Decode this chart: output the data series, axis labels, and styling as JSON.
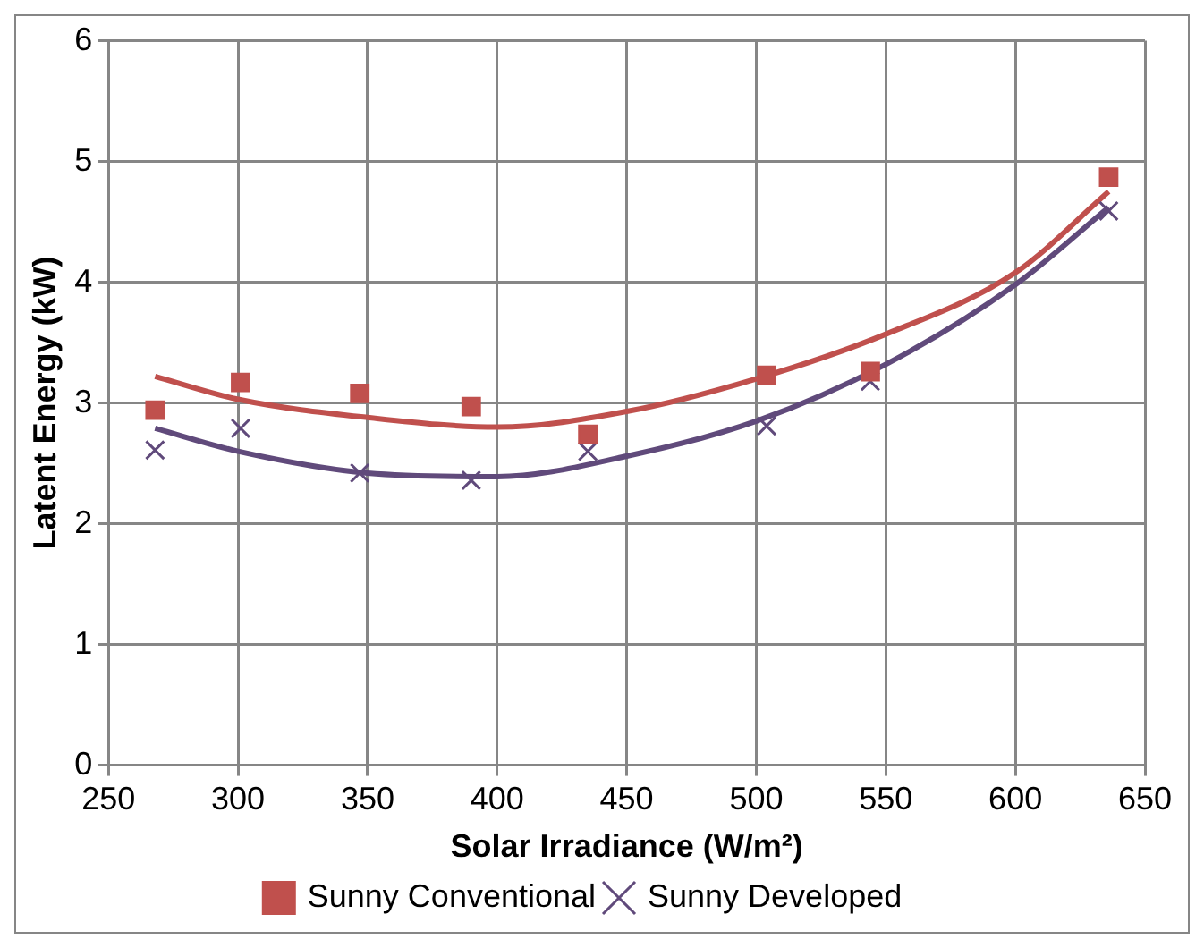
{
  "chart_data": {
    "type": "scatter",
    "xlabel": "Solar Irradiance (W/m²)",
    "ylabel": "Latent Energy (kW)",
    "xlim": [
      250,
      650
    ],
    "xticks": [
      250,
      300,
      350,
      400,
      450,
      500,
      550,
      600,
      650
    ],
    "ylim": [
      0,
      6
    ],
    "yticks": [
      0,
      1,
      2,
      3,
      4,
      5,
      6
    ],
    "grid": true,
    "legend": "bottom",
    "series": [
      {
        "name": "Sunny Conventional",
        "marker": "square",
        "color": "#c0504d",
        "x": [
          268,
          301,
          347,
          390,
          435,
          504,
          544,
          636
        ],
        "values": [
          2.94,
          3.17,
          3.08,
          2.97,
          2.74,
          3.23,
          3.26,
          4.87
        ]
      },
      {
        "name": "Sunny Developed",
        "marker": "cross",
        "color": "#604a7b",
        "x": [
          268,
          301,
          347,
          390,
          435,
          504,
          544,
          636
        ],
        "values": [
          2.61,
          2.79,
          2.42,
          2.36,
          2.6,
          2.81,
          3.18,
          4.59
        ]
      },
      {
        "type": "line",
        "marker": "none",
        "color": "#c0504d",
        "x": [
          268,
          300,
          350,
          400,
          450,
          500,
          550,
          600,
          636
        ],
        "values": [
          3.22,
          3.03,
          2.88,
          2.8,
          2.93,
          3.2,
          3.57,
          4.08,
          4.75
        ]
      },
      {
        "type": "line",
        "marker": "none",
        "color": "#604a7b",
        "x": [
          268,
          300,
          350,
          400,
          450,
          500,
          550,
          600,
          636
        ],
        "values": [
          2.79,
          2.6,
          2.42,
          2.39,
          2.56,
          2.85,
          3.32,
          3.98,
          4.62
        ]
      }
    ]
  }
}
